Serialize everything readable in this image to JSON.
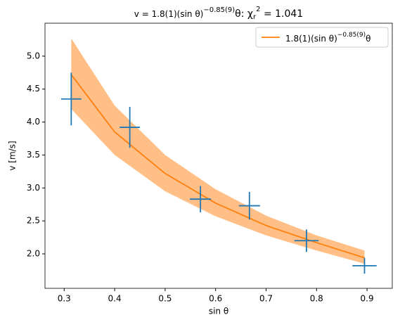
{
  "chart_data": {
    "type": "errorbar_fit",
    "title_parts": [
      "v = 1.8(1)(sin θ)",
      "−0.85(9)",
      "θ: χ",
      "r",
      "2",
      " = 1.041"
    ],
    "x_label": "sin θ",
    "y_label": "v [m/s]",
    "xlim": [
      0.262,
      0.95
    ],
    "ylim": [
      1.477,
      5.5
    ],
    "xticks": [
      0.3,
      0.4,
      0.5,
      0.6,
      0.7,
      0.8,
      0.9
    ],
    "yticks": [
      {
        "value": 2,
        "label": "2.0"
      },
      {
        "value": 2.5,
        "label": "2.5"
      },
      {
        "value": 3,
        "label": "3.0"
      },
      {
        "value": 3.5,
        "label": "3.5"
      },
      {
        "value": 4,
        "label": "4.0"
      },
      {
        "value": 4.5,
        "label": "4.5"
      },
      {
        "value": 5,
        "label": "5.0"
      }
    ],
    "measurements": {
      "color": "#1f77b4",
      "x": [
        0.314,
        0.43,
        0.57,
        0.667,
        0.78,
        0.895
      ],
      "xerr": [
        0.02,
        0.02,
        0.021,
        0.021,
        0.024,
        0.024
      ],
      "y": [
        4.35,
        3.92,
        2.83,
        2.73,
        2.2,
        1.82
      ],
      "yerr": [
        0.4,
        0.31,
        0.2,
        0.21,
        0.17,
        0.12
      ]
    },
    "fit": {
      "name_parts": [
        "1.8(1)(sin θ)",
        "−0.85(9)",
        "θ"
      ],
      "color": "#ff7f0e",
      "band_color": "#ffbf86",
      "x": [
        0.314,
        0.4,
        0.5,
        0.6,
        0.7,
        0.8,
        0.895
      ],
      "values": [
        4.72,
        3.85,
        3.22,
        2.77,
        2.43,
        2.17,
        1.94
      ],
      "lower": [
        4.2,
        3.5,
        2.95,
        2.57,
        2.28,
        2.05,
        1.85
      ],
      "upper": [
        5.27,
        4.25,
        3.5,
        2.98,
        2.58,
        2.28,
        2.05
      ]
    },
    "legend": "upper right"
  }
}
